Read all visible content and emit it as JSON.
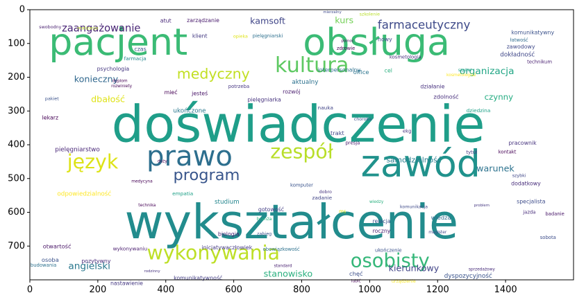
{
  "chart_data": {
    "type": "wordcloud",
    "title": "",
    "xlabel": "",
    "ylabel": "",
    "xlim": [
      0,
      1600
    ],
    "ylim": [
      0,
      800
    ],
    "y_inverted": true,
    "xticks": [
      0,
      200,
      400,
      600,
      800,
      1000,
      1200,
      1400
    ],
    "yticks": [
      0,
      100,
      200,
      300,
      400,
      500,
      600,
      700
    ],
    "background": "#ffffff",
    "words": [
      {
        "text": "pacjent",
        "x": 260,
        "y": 95,
        "size": 110,
        "color": "#3bbb75"
      },
      {
        "text": "obsługa",
        "x": 1020,
        "y": 95,
        "size": 110,
        "color": "#3bbb75"
      },
      {
        "text": "doświadczenie",
        "x": 790,
        "y": 340,
        "size": 150,
        "color": "#1f9e89"
      },
      {
        "text": "wykształcenie",
        "x": 770,
        "y": 630,
        "size": 140,
        "color": "#228c8d"
      },
      {
        "text": "zawód",
        "x": 1150,
        "y": 455,
        "size": 110,
        "color": "#20928c"
      },
      {
        "text": "prawo",
        "x": 470,
        "y": 435,
        "size": 82,
        "color": "#2d6f8e"
      },
      {
        "text": "kultura",
        "x": 830,
        "y": 165,
        "size": 62,
        "color": "#5ec962"
      },
      {
        "text": "zespół",
        "x": 800,
        "y": 420,
        "size": 58,
        "color": "#b8de29"
      },
      {
        "text": "język",
        "x": 185,
        "y": 450,
        "size": 58,
        "color": "#dde318"
      },
      {
        "text": "wykonywania",
        "x": 540,
        "y": 720,
        "size": 58,
        "color": "#bddf26"
      },
      {
        "text": "osobisty",
        "x": 1060,
        "y": 745,
        "size": 56,
        "color": "#35b779"
      },
      {
        "text": "program",
        "x": 520,
        "y": 490,
        "size": 46,
        "color": "#39568c"
      },
      {
        "text": "medyczny",
        "x": 540,
        "y": 190,
        "size": 42,
        "color": "#c2df23"
      },
      {
        "text": "farmaceutyczny",
        "x": 1160,
        "y": 45,
        "size": 34,
        "color": "#3e4a89"
      },
      {
        "text": "zaangażowanie",
        "x": 210,
        "y": 55,
        "size": 30,
        "color": "#482475"
      },
      {
        "text": "kamsoft",
        "x": 700,
        "y": 33,
        "size": 26,
        "color": "#404688"
      },
      {
        "text": "organizacja",
        "x": 1345,
        "y": 183,
        "size": 28,
        "color": "#21a685"
      },
      {
        "text": "konieczny",
        "x": 195,
        "y": 205,
        "size": 26,
        "color": "#31688e"
      },
      {
        "text": "kurs",
        "x": 925,
        "y": 31,
        "size": 26,
        "color": "#73d056"
      },
      {
        "text": "czynny",
        "x": 1380,
        "y": 258,
        "size": 24,
        "color": "#25ac82"
      },
      {
        "text": "dbałość",
        "x": 230,
        "y": 265,
        "size": 26,
        "color": "#dfe318"
      },
      {
        "text": "stanowisko",
        "x": 760,
        "y": 782,
        "size": 26,
        "color": "#2ab07f"
      },
      {
        "text": "angielski",
        "x": 175,
        "y": 760,
        "size": 28,
        "color": "#2a788e"
      },
      {
        "text": "kierunkowy",
        "x": 1130,
        "y": 765,
        "size": 26,
        "color": "#414487"
      },
      {
        "text": "warunek",
        "x": 1370,
        "y": 470,
        "size": 26,
        "color": "#2c728e"
      },
      {
        "text": "samodzielność",
        "x": 1130,
        "y": 445,
        "size": 22,
        "color": "#287d8e"
      },
      {
        "text": "odpowiedzialność",
        "x": 160,
        "y": 547,
        "size": 18,
        "color": "#fde725"
      },
      {
        "text": "pielęgniarstwo",
        "x": 140,
        "y": 415,
        "size": 18,
        "color": "#482677"
      },
      {
        "text": "ukończone",
        "x": 470,
        "y": 300,
        "size": 18,
        "color": "#2a788e"
      },
      {
        "text": "psychologia",
        "x": 245,
        "y": 175,
        "size": 16,
        "color": "#453781"
      },
      {
        "text": "interpersonalny",
        "x": 910,
        "y": 178,
        "size": 16,
        "color": "#2d708e"
      },
      {
        "text": "aktualny",
        "x": 810,
        "y": 215,
        "size": 18,
        "color": "#2c718e"
      },
      {
        "text": "komunikatywny",
        "x": 1480,
        "y": 68,
        "size": 16,
        "color": "#3b528b"
      },
      {
        "text": "dokładność",
        "x": 1435,
        "y": 134,
        "size": 18,
        "color": "#3f4788"
      },
      {
        "text": "zawodowy",
        "x": 1445,
        "y": 110,
        "size": 16,
        "color": "#3e4989"
      },
      {
        "text": "pracownik",
        "x": 1450,
        "y": 395,
        "size": 16,
        "color": "#46337e"
      },
      {
        "text": "dodatkowy",
        "x": 1460,
        "y": 515,
        "size": 16,
        "color": "#472c7a"
      },
      {
        "text": "specjalista",
        "x": 1475,
        "y": 568,
        "size": 16,
        "color": "#3e4c8a"
      },
      {
        "text": "działanie",
        "x": 1185,
        "y": 228,
        "size": 16,
        "color": "#46307e"
      },
      {
        "text": "zdolność",
        "x": 1225,
        "y": 257,
        "size": 17,
        "color": "#472e7c"
      },
      {
        "text": "wiedza",
        "x": 1210,
        "y": 615,
        "size": 17,
        "color": "#2f6c8e"
      },
      {
        "text": "relacja",
        "x": 1035,
        "y": 627,
        "size": 16,
        "color": "#3b528b"
      },
      {
        "text": "roczny",
        "x": 1035,
        "y": 655,
        "size": 16,
        "color": "#481f70"
      },
      {
        "text": "studium",
        "x": 580,
        "y": 570,
        "size": 18,
        "color": "#24868e"
      },
      {
        "text": "gotowość",
        "x": 710,
        "y": 592,
        "size": 16,
        "color": "#433e85"
      },
      {
        "text": "biologia",
        "x": 585,
        "y": 665,
        "size": 16,
        "color": "#482374"
      },
      {
        "text": "lekarz",
        "x": 60,
        "y": 320,
        "size": 16,
        "color": "#440154"
      },
      {
        "text": "otwartość",
        "x": 80,
        "y": 700,
        "size": 17,
        "color": "#471365"
      },
      {
        "text": "osoba",
        "x": 60,
        "y": 740,
        "size": 17,
        "color": "#3b528b"
      },
      {
        "text": "pozytywny",
        "x": 195,
        "y": 745,
        "size": 16,
        "color": "#482979"
      },
      {
        "text": "nastawienie",
        "x": 285,
        "y": 810,
        "size": 16,
        "color": "#453882"
      },
      {
        "text": "komunikatywność",
        "x": 495,
        "y": 795,
        "size": 16,
        "color": "#433d84"
      },
      {
        "text": "wykonywaniu",
        "x": 295,
        "y": 708,
        "size": 15,
        "color": "#481b6d"
      },
      {
        "text": "inicjatywaczłowiek",
        "x": 580,
        "y": 705,
        "size": 16,
        "color": "#443983"
      },
      {
        "text": "obowiązkowość",
        "x": 740,
        "y": 710,
        "size": 14,
        "color": "#2d718e"
      },
      {
        "text": "dyspozycyjność",
        "x": 1290,
        "y": 790,
        "size": 18,
        "color": "#3a548c"
      },
      {
        "text": "ukończenie",
        "x": 1055,
        "y": 713,
        "size": 14,
        "color": "#3b518b"
      },
      {
        "text": "chęć",
        "x": 960,
        "y": 782,
        "size": 17,
        "color": "#3c4f8a"
      },
      {
        "text": "office",
        "x": 975,
        "y": 185,
        "size": 17,
        "color": "#2b748e"
      },
      {
        "text": "cel",
        "x": 1055,
        "y": 180,
        "size": 16,
        "color": "#2ab07f"
      },
      {
        "text": "klient",
        "x": 500,
        "y": 78,
        "size": 16,
        "color": "#443a83"
      },
      {
        "text": "zarządzanie",
        "x": 510,
        "y": 32,
        "size": 16,
        "color": "#481a6c"
      },
      {
        "text": "atut",
        "x": 400,
        "y": 33,
        "size": 16,
        "color": "#482878"
      },
      {
        "text": "nowy",
        "x": 1045,
        "y": 88,
        "size": 16,
        "color": "#3f4889"
      },
      {
        "text": "mieć",
        "x": 415,
        "y": 245,
        "size": 16,
        "color": "#440154"
      },
      {
        "text": "jesteś",
        "x": 500,
        "y": 248,
        "size": 16,
        "color": "#481467"
      },
      {
        "text": "pielęgniarka",
        "x": 690,
        "y": 267,
        "size": 16,
        "color": "#46327e"
      },
      {
        "text": "rozwój",
        "x": 770,
        "y": 243,
        "size": 16,
        "color": "#481b6d"
      },
      {
        "text": "trakt",
        "x": 905,
        "y": 365,
        "size": 17,
        "color": "#404688"
      },
      {
        "text": "potrzeba",
        "x": 615,
        "y": 228,
        "size": 14,
        "color": "#453581"
      },
      {
        "text": "czas",
        "x": 325,
        "y": 117,
        "size": 16,
        "color": "#3d4d8a"
      },
      {
        "text": "farmacja",
        "x": 310,
        "y": 145,
        "size": 15,
        "color": "#24868e"
      },
      {
        "text": "empatia",
        "x": 450,
        "y": 545,
        "size": 15,
        "color": "#1fa188"
      },
      {
        "text": "komputer",
        "x": 800,
        "y": 520,
        "size": 14,
        "color": "#3a548c"
      },
      {
        "text": "zadanie",
        "x": 860,
        "y": 557,
        "size": 15,
        "color": "#414487"
      },
      {
        "text": "komunikacja",
        "x": 1130,
        "y": 585,
        "size": 13,
        "color": "#3e4989"
      },
      {
        "text": "szybki",
        "x": 1440,
        "y": 492,
        "size": 13,
        "color": "#3f4788"
      },
      {
        "text": "tytuł",
        "x": 1300,
        "y": 423,
        "size": 14,
        "color": "#453882"
      },
      {
        "text": "kontakt",
        "x": 1405,
        "y": 422,
        "size": 14,
        "color": "#440154"
      },
      {
        "text": "jazda",
        "x": 1470,
        "y": 600,
        "size": 14,
        "color": "#472d7b"
      },
      {
        "text": "badanie",
        "x": 1545,
        "y": 605,
        "size": 14,
        "color": "#481769"
      },
      {
        "text": "technikum",
        "x": 1500,
        "y": 155,
        "size": 14,
        "color": "#481f70"
      },
      {
        "text": "łatwość",
        "x": 1440,
        "y": 90,
        "size": 14,
        "color": "#2f6c8e"
      },
      {
        "text": "kosmetologia",
        "x": 1105,
        "y": 140,
        "size": 14,
        "color": "#472f7d"
      },
      {
        "text": "zdrowie",
        "x": 930,
        "y": 115,
        "size": 14,
        "color": "#440154"
      },
      {
        "text": "sobota",
        "x": 1525,
        "y": 675,
        "size": 14,
        "color": "#3d4d8a"
      },
      {
        "text": "nauka",
        "x": 870,
        "y": 290,
        "size": 15,
        "color": "#414487"
      },
      {
        "text": "choroba",
        "x": 980,
        "y": 325,
        "size": 13,
        "color": "#3b518b"
      },
      {
        "text": "ekg",
        "x": 1110,
        "y": 360,
        "size": 14,
        "color": "#46337e"
      },
      {
        "text": "dziedzina",
        "x": 1320,
        "y": 298,
        "size": 15,
        "color": "#1fa188"
      },
      {
        "text": "presja",
        "x": 950,
        "y": 395,
        "size": 14,
        "color": "#481b6d"
      },
      {
        "text": "dobro",
        "x": 870,
        "y": 540,
        "size": 13,
        "color": "#46337e"
      },
      {
        "text": "wiedzy",
        "x": 1020,
        "y": 570,
        "size": 12,
        "color": "#2ab07f"
      },
      {
        "text": "ms",
        "x": 920,
        "y": 598,
        "size": 14,
        "color": "#dde318"
      },
      {
        "text": "szkolenie",
        "x": 1000,
        "y": 14,
        "size": 13,
        "color": "#b8de29"
      },
      {
        "text": "opieka",
        "x": 620,
        "y": 80,
        "size": 13,
        "color": "#dfe318"
      },
      {
        "text": "realizacja",
        "x": 170,
        "y": 55,
        "size": 13,
        "color": "#bddf26"
      },
      {
        "text": "mierzalny",
        "x": 890,
        "y": 8,
        "size": 11,
        "color": "#3e4989"
      },
      {
        "text": "pomoc",
        "x": 935,
        "y": 93,
        "size": 11,
        "color": "#440154"
      },
      {
        "text": "swobodny",
        "x": 60,
        "y": 52,
        "size": 13,
        "color": "#481f70"
      },
      {
        "text": "pielęgniarski",
        "x": 700,
        "y": 78,
        "size": 14,
        "color": "#2d708e"
      },
      {
        "text": "kosmetologia2",
        "x": 1270,
        "y": 195,
        "size": 12,
        "color": "#fde725"
      },
      {
        "text": "rozwiniety",
        "x": 270,
        "y": 228,
        "size": 12,
        "color": "#440154"
      },
      {
        "text": "dyplom",
        "x": 265,
        "y": 212,
        "size": 12,
        "color": "#440154"
      },
      {
        "text": "pakiet",
        "x": 65,
        "y": 265,
        "size": 13,
        "color": "#3b528b"
      },
      {
        "text": "medycyna",
        "x": 330,
        "y": 510,
        "size": 12,
        "color": "#440154"
      },
      {
        "text": "technika",
        "x": 345,
        "y": 580,
        "size": 12,
        "color": "#440154"
      },
      {
        "text": "duży",
        "x": 390,
        "y": 450,
        "size": 12,
        "color": "#440154"
      },
      {
        "text": "branża",
        "x": 690,
        "y": 620,
        "size": 13,
        "color": "#2ab07f"
      },
      {
        "text": "zabieg",
        "x": 690,
        "y": 665,
        "size": 13,
        "color": "#3b518b"
      },
      {
        "text": "magister",
        "x": 1200,
        "y": 660,
        "size": 12,
        "color": "#3e4989"
      },
      {
        "text": "problem",
        "x": 1330,
        "y": 580,
        "size": 11,
        "color": "#453781"
      },
      {
        "text": "sprzedażowy",
        "x": 1330,
        "y": 770,
        "size": 12,
        "color": "#472c7a"
      },
      {
        "text": "urządzenie",
        "x": 1100,
        "y": 805,
        "size": 13,
        "color": "#fde725"
      },
      {
        "text": "lubić",
        "x": 960,
        "y": 805,
        "size": 12,
        "color": "#440154"
      },
      {
        "text": "standard",
        "x": 745,
        "y": 760,
        "size": 12,
        "color": "#481f70"
      },
      {
        "text": "budowania",
        "x": 40,
        "y": 757,
        "size": 14,
        "color": "#2d718e"
      },
      {
        "text": "rodzinny",
        "x": 360,
        "y": 775,
        "size": 11,
        "color": "#46327e"
      },
      {
        "text": "szpital",
        "x": 1280,
        "y": 180,
        "size": 12,
        "color": "#1fa188"
      }
    ]
  }
}
